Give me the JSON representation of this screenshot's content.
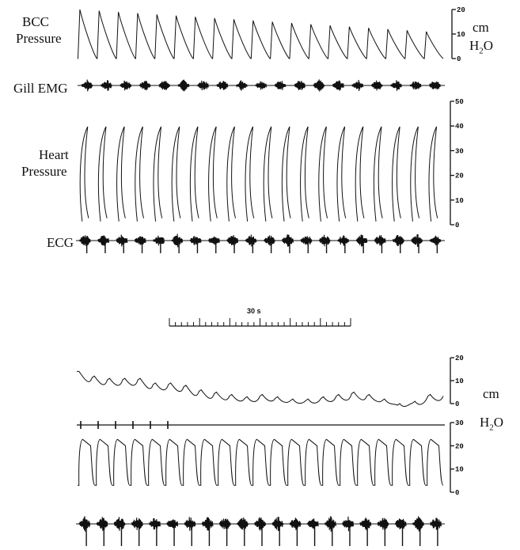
{
  "labels": {
    "bcc": [
      "BCC",
      "Pressure"
    ],
    "gill": "Gill EMG",
    "heart": [
      "Heart",
      "Pressure"
    ],
    "ecg": "ECG"
  },
  "units": {
    "top": [
      "cm",
      "H2O"
    ],
    "bottom": [
      "cm",
      "H2O"
    ]
  },
  "timescale_label": "30 s",
  "chart_data": [
    {
      "type": "line",
      "panel": "top",
      "trace": "BCC Pressure",
      "ylabel": "cm H2O",
      "ylim": [
        0,
        20
      ],
      "yticks": [
        "20",
        "10",
        "0"
      ],
      "beats": 19,
      "peak_range": [
        11,
        20
      ],
      "trough": 0
    },
    {
      "type": "line",
      "panel": "top",
      "trace": "Gill EMG",
      "bursts": 19
    },
    {
      "type": "line",
      "panel": "top",
      "trace": "Heart Pressure",
      "ylabel": "cm H2O",
      "ylim": [
        0,
        50
      ],
      "yticks": [
        "50",
        "40",
        "30",
        "20",
        "10",
        "0"
      ],
      "beats": 20,
      "peak": 40,
      "trough": 2
    },
    {
      "type": "line",
      "panel": "top",
      "trace": "ECG",
      "beats": 20
    },
    {
      "type": "line",
      "panel": "bottom",
      "trace": "BCC Pressure",
      "ylabel": "cm H2O",
      "ylim": [
        0,
        20
      ],
      "yticks": [
        "20",
        "10",
        "0"
      ],
      "peaks": [
        14,
        12,
        11,
        11,
        11,
        9,
        9,
        8,
        6,
        5,
        4,
        3,
        4,
        3,
        2,
        2,
        3,
        4,
        5,
        4,
        2,
        0,
        1,
        4
      ]
    },
    {
      "type": "line",
      "panel": "bottom",
      "trace": "Gill EMG",
      "bursts": 6
    },
    {
      "type": "line",
      "panel": "bottom",
      "trace": "Heart Pressure",
      "ylabel": "cm H2O",
      "ylim": [
        0,
        30
      ],
      "yticks": [
        "30",
        "20",
        "10",
        "0"
      ],
      "beats": 21,
      "peak": 23,
      "trough": 3
    },
    {
      "type": "line",
      "panel": "bottom",
      "trace": "ECG",
      "beats": 21
    }
  ]
}
